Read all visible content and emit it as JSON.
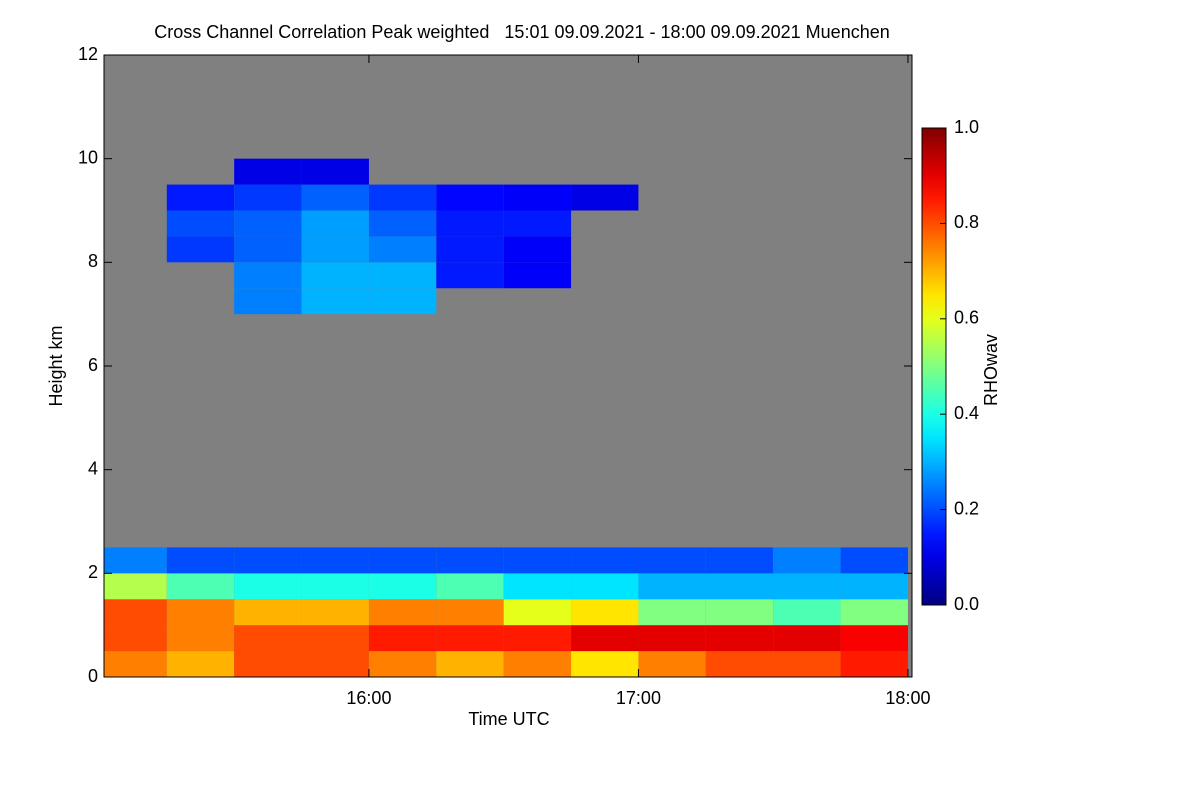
{
  "chart_data": {
    "type": "heatmap",
    "title": "Cross Channel Correlation Peak weighted   15:01 09.09.2021 - 18:00 09.09.2021 Muenchen",
    "x_label": "Time UTC",
    "y_label": "Height km",
    "colorbar_label": "RHOwav",
    "colormap": "jet",
    "missing_color": "#808080",
    "x": [
      15.125,
      15.375,
      15.625,
      15.875,
      16.125,
      16.375,
      16.625,
      16.875,
      17.125,
      17.375,
      17.625,
      17.875
    ],
    "y": [
      0.25,
      0.75,
      1.25,
      1.75,
      2.25,
      2.75,
      3.25,
      3.75,
      4.25,
      4.75,
      5.25,
      5.75,
      6.25,
      6.75,
      7.25,
      7.75,
      8.25,
      8.75,
      9.25,
      9.75,
      10.25,
      10.75,
      11.25,
      11.75
    ],
    "z": [
      [
        0.75,
        0.7,
        0.8,
        0.8,
        0.75,
        0.7,
        0.75,
        0.65,
        0.75,
        0.8,
        0.8,
        0.85
      ],
      [
        0.8,
        0.75,
        0.8,
        0.8,
        0.85,
        0.85,
        0.85,
        0.9,
        0.9,
        0.9,
        0.9,
        0.88
      ],
      [
        0.8,
        0.75,
        0.7,
        0.7,
        0.75,
        0.75,
        0.6,
        0.65,
        0.5,
        0.5,
        0.45,
        0.5
      ],
      [
        0.55,
        0.45,
        0.4,
        0.4,
        0.4,
        0.45,
        0.35,
        0.35,
        0.3,
        0.3,
        0.3,
        0.3
      ],
      [
        0.25,
        0.2,
        0.2,
        0.2,
        0.2,
        0.2,
        0.2,
        0.2,
        0.2,
        0.2,
        0.25,
        0.2
      ],
      [
        null,
        null,
        null,
        null,
        null,
        null,
        null,
        null,
        null,
        null,
        null,
        null
      ],
      [
        null,
        null,
        null,
        null,
        null,
        null,
        null,
        null,
        null,
        null,
        null,
        null
      ],
      [
        null,
        null,
        null,
        null,
        null,
        null,
        null,
        null,
        null,
        null,
        null,
        null
      ],
      [
        null,
        null,
        null,
        null,
        null,
        null,
        null,
        null,
        null,
        null,
        null,
        null
      ],
      [
        null,
        null,
        null,
        null,
        null,
        null,
        null,
        null,
        null,
        null,
        null,
        null
      ],
      [
        null,
        null,
        null,
        null,
        null,
        null,
        null,
        null,
        null,
        null,
        null,
        null
      ],
      [
        null,
        null,
        null,
        null,
        null,
        null,
        null,
        null,
        null,
        null,
        null,
        null
      ],
      [
        null,
        null,
        null,
        null,
        null,
        null,
        null,
        null,
        null,
        null,
        null,
        null
      ],
      [
        null,
        null,
        null,
        null,
        null,
        null,
        null,
        null,
        null,
        null,
        null,
        null
      ],
      [
        null,
        null,
        0.25,
        0.3,
        0.3,
        null,
        null,
        null,
        null,
        null,
        null,
        null
      ],
      [
        null,
        null,
        0.25,
        0.3,
        0.3,
        0.15,
        0.12,
        null,
        null,
        null,
        null,
        null
      ],
      [
        null,
        0.18,
        0.22,
        0.28,
        0.25,
        0.15,
        0.12,
        null,
        null,
        null,
        null,
        null
      ],
      [
        null,
        0.2,
        0.22,
        0.28,
        0.22,
        0.15,
        0.15,
        null,
        null,
        null,
        null,
        null
      ],
      [
        null,
        0.15,
        0.18,
        0.22,
        0.18,
        0.13,
        0.12,
        0.1,
        null,
        null,
        null,
        null
      ],
      [
        null,
        null,
        0.1,
        0.1,
        null,
        null,
        null,
        null,
        null,
        null,
        null,
        null
      ],
      [
        null,
        null,
        null,
        null,
        null,
        null,
        null,
        null,
        null,
        null,
        null,
        null
      ],
      [
        null,
        null,
        null,
        null,
        null,
        null,
        null,
        null,
        null,
        null,
        null,
        null
      ],
      [
        null,
        null,
        null,
        null,
        null,
        null,
        null,
        null,
        null,
        null,
        null,
        null
      ],
      [
        null,
        null,
        null,
        null,
        null,
        null,
        null,
        null,
        null,
        null,
        null,
        null
      ]
    ],
    "xlim": [
      15.017,
      18.015
    ],
    "xticks": [
      {
        "value": 16,
        "label": "16:00"
      },
      {
        "value": 17,
        "label": "17:00"
      },
      {
        "value": 18,
        "label": "18:00"
      }
    ],
    "ylim": [
      0,
      12
    ],
    "yticks": [
      0,
      2,
      4,
      6,
      8,
      10,
      12
    ],
    "zlim": [
      0,
      1
    ],
    "zticks": [
      {
        "value": 0,
        "label": "0.0"
      },
      {
        "value": 0.2,
        "label": "0.2"
      },
      {
        "value": 0.4,
        "label": "0.4"
      },
      {
        "value": 0.6,
        "label": "0.6"
      },
      {
        "value": 0.8,
        "label": "0.8"
      },
      {
        "value": 1,
        "label": "1.0"
      }
    ]
  }
}
